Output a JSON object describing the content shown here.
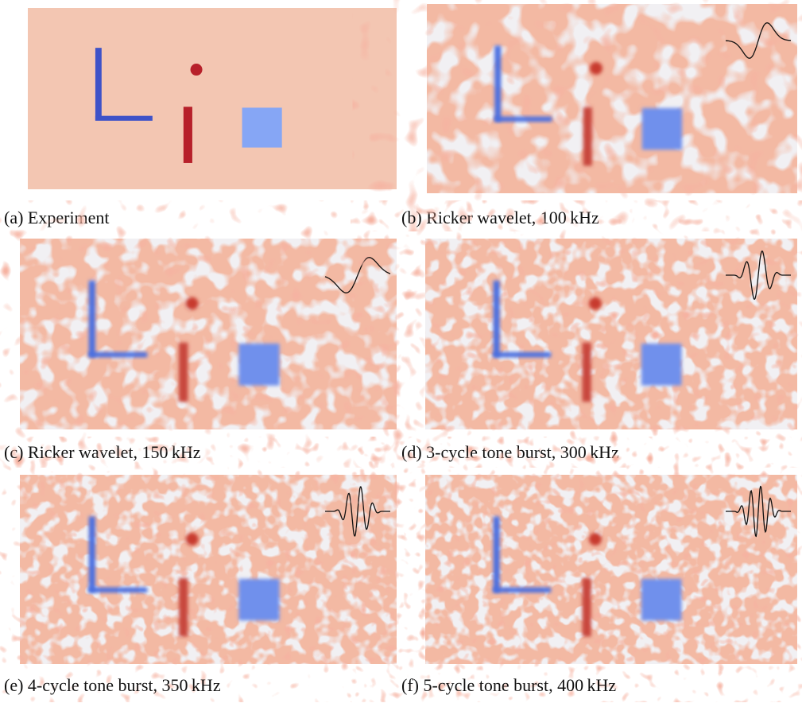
{
  "panels": [
    {
      "caption": "(a) Experiment"
    },
    {
      "caption": "(b) Ricker wavelet, 100 kHz"
    },
    {
      "caption": "(c) Ricker wavelet, 150 kHz"
    },
    {
      "caption": "(d) 3-cycle tone burst, 300 kHz"
    },
    {
      "caption": "(e) 4-cycle tone burst, 350 kHz"
    },
    {
      "caption": "(f) 5-cycle tone burst, 400 kHz"
    }
  ]
}
